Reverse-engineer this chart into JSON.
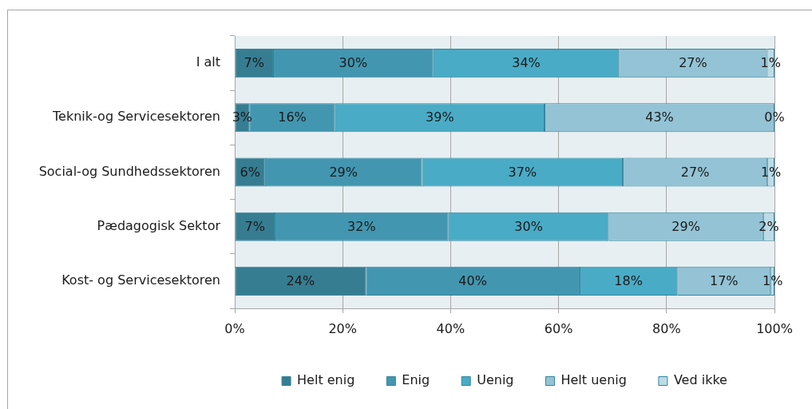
{
  "chart_data": {
    "type": "bar",
    "orientation": "horizontal",
    "stacked": true,
    "categories": [
      "I alt",
      "Teknik-og Servicesektoren",
      "Social-og Sundhedssektoren",
      "Pædagogisk Sektor",
      "Kost- og Servicesektoren"
    ],
    "series": [
      {
        "name": "Helt enig",
        "color": "#367d92",
        "values": [
          7.1,
          2.7,
          5.6,
          7.4,
          24.3
        ],
        "value_labels": [
          "7%",
          "3%",
          "6%",
          "7%",
          "24%"
        ]
      },
      {
        "name": "Enig",
        "color": "#4396b0",
        "values": [
          29.7,
          15.9,
          29.1,
          32.2,
          39.6
        ],
        "value_labels": [
          "30%",
          "16%",
          "29%",
          "32%",
          "40%"
        ]
      },
      {
        "name": "Uenig",
        "color": "#4aabc6",
        "values": [
          34.4,
          38.8,
          37.2,
          29.7,
          18.1
        ],
        "value_labels": [
          "34%",
          "39%",
          "37%",
          "30%",
          "18%"
        ]
      },
      {
        "name": "Helt uenig",
        "color": "#93c3d5",
        "values": [
          27.4,
          42.6,
          26.8,
          28.6,
          17.3
        ],
        "value_labels": [
          "27%",
          "43%",
          "27%",
          "29%",
          "17%"
        ]
      },
      {
        "name": "Ved ikke",
        "color": "#bcdbe6",
        "values": [
          1.4,
          0,
          1.3,
          2.1,
          0.7
        ],
        "value_labels": [
          "1%",
          "0%",
          "1%",
          "2%",
          "1%"
        ]
      }
    ],
    "xlim": [
      0,
      100
    ],
    "xticks": [
      {
        "value": 0,
        "label": "0%"
      },
      {
        "value": 20,
        "label": "20%"
      },
      {
        "value": 40,
        "label": "40%"
      },
      {
        "value": 60,
        "label": "60%"
      },
      {
        "value": 80,
        "label": "80%"
      },
      {
        "value": 100,
        "label": "100%"
      }
    ],
    "grid": "x",
    "legend": "bottom"
  }
}
